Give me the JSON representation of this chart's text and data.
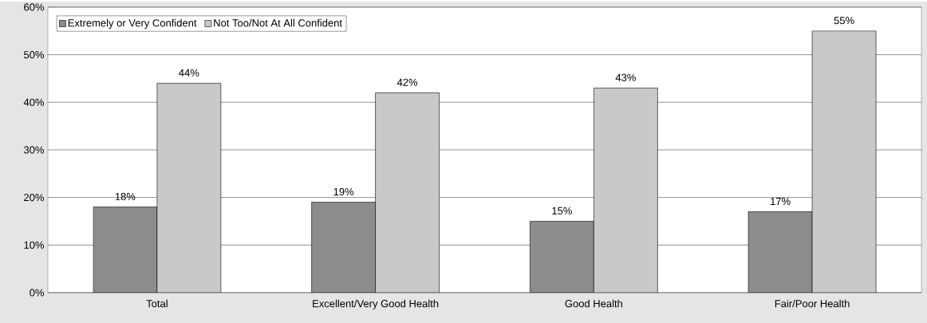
{
  "chart_data": {
    "type": "bar",
    "categories": [
      "Total",
      "Excellent/Very Good Health",
      "Good Health",
      "Fair/Poor Health"
    ],
    "series": [
      {
        "name": "Extremely or Very Confident",
        "color": "#8c8c8e",
        "values": [
          18,
          19,
          15,
          17
        ],
        "value_labels": [
          "18%",
          "19%",
          "15%",
          "17%"
        ]
      },
      {
        "name": "Not Too/Not At All Confident",
        "color": "#c8c9cb",
        "values": [
          44,
          42,
          43,
          55
        ],
        "value_labels": [
          "44%",
          "42%",
          "43%",
          "55%"
        ]
      }
    ],
    "ylim": [
      0,
      60
    ],
    "yticks": [
      {
        "value": 0,
        "label": "0%"
      },
      {
        "value": 10,
        "label": "10%"
      },
      {
        "value": 20,
        "label": "20%"
      },
      {
        "value": 30,
        "label": "30%"
      },
      {
        "value": 40,
        "label": "40%"
      },
      {
        "value": 50,
        "label": "50%"
      },
      {
        "value": 60,
        "label": "60%"
      }
    ],
    "grid": "y",
    "legend": "top left"
  }
}
